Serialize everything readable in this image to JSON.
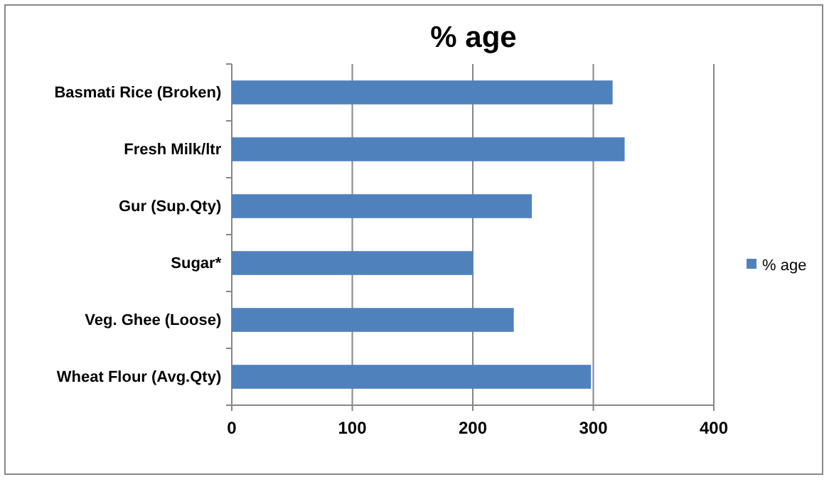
{
  "chart_data": {
    "type": "bar",
    "orientation": "horizontal",
    "title": "% age",
    "categories": [
      "Basmati Rice (Broken)",
      "Fresh Milk/ltr",
      "Gur (Sup.Qty)",
      "Sugar*",
      "Veg. Ghee (Loose)",
      "Wheat Flour (Avg.Qty)"
    ],
    "series": [
      {
        "name": "% age",
        "color": "#4f81bd",
        "values": [
          316,
          326,
          249,
          200,
          234,
          298
        ]
      }
    ],
    "xlim": [
      0,
      400
    ],
    "xticks": [
      0,
      100,
      200,
      300,
      400
    ],
    "grid": "x",
    "legend": "right"
  }
}
